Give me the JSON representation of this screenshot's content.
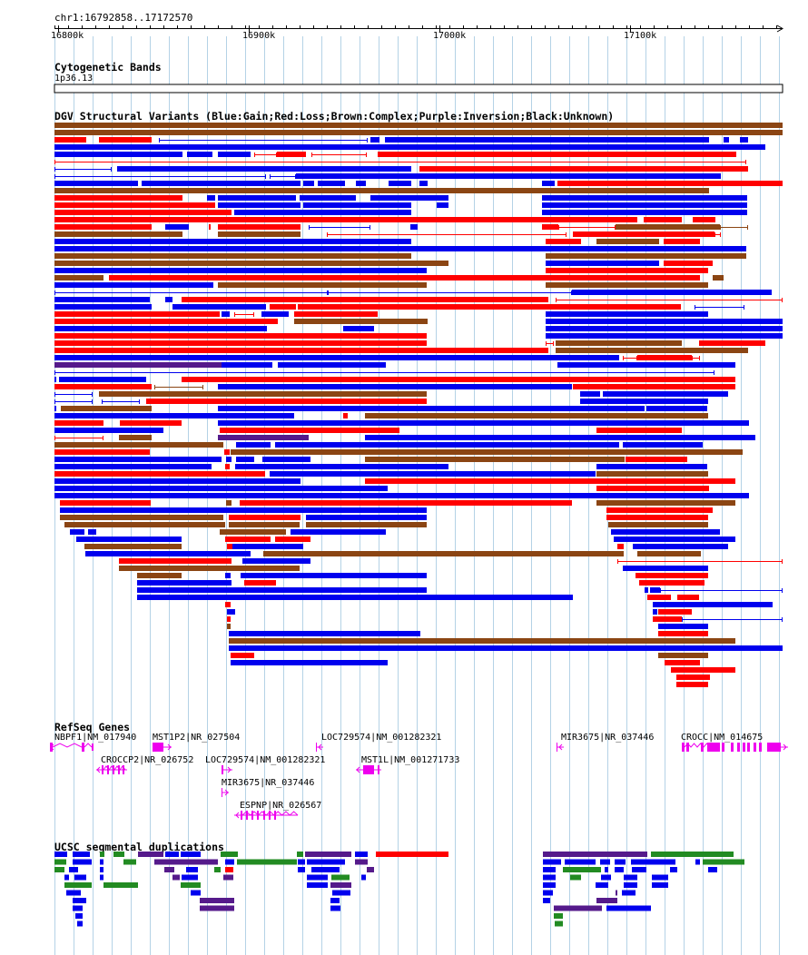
{
  "position": "chr1:16792858..17172570",
  "ruler": {
    "ticks": [
      "16800k",
      "16900k",
      "17000k",
      "17100k"
    ]
  },
  "tracks": {
    "cytoband": {
      "title": "Cytogenetic Bands",
      "band": "1p36.13"
    },
    "dgv": {
      "title": "DGV Structural Variants (Blue:Gain;Red:Loss;Brown:Complex;Purple:Inversion;Black:Unknown)"
    },
    "refseq": {
      "title": "RefSeq Genes",
      "genes": [
        "NBPF1|NM_017940",
        "MST1P2|NR_027504",
        "LOC729574|NM_001282321",
        "MIR3675|NR_037446",
        "CROCC|NM_014675",
        "CROCCP2|NR_026752",
        "LOC729574|NM_001282321",
        "MST1L|NM_001271733",
        "MIR3675|NR_037446",
        "ESPNP|NR_026567"
      ]
    },
    "segdup": {
      "title": "UCSC segmental duplications"
    }
  },
  "colors": {
    "gain": "#0000ee",
    "loss": "#ff0000",
    "complex": "#8b4513",
    "inversion": "#551a8b",
    "gene": "#ee00ee",
    "segdup_green": "#228b22",
    "grid": "#b4d2e6"
  }
}
